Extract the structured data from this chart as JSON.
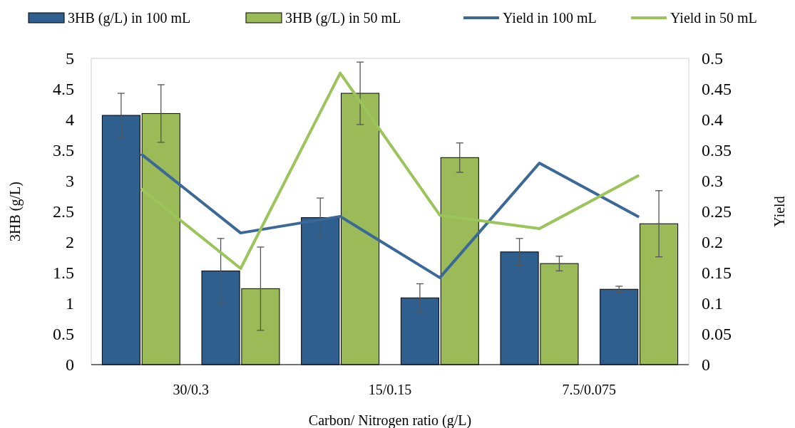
{
  "chart_data": {
    "type": "bar",
    "xlabel": "Carbon/ Nitrogen ratio (g/L)",
    "ylabel": "3HB (g/L)",
    "y2label": "Yield",
    "categories": [
      null,
      null,
      null,
      null,
      null,
      null
    ],
    "annotations": [
      "30/0.3",
      "15/0.15",
      "7.5/0.075"
    ],
    "series": [
      {
        "name": "3HB (g/L) in 100 mL",
        "color": "#2f5f8f",
        "values": [
          4.07,
          1.53,
          2.4,
          1.09,
          1.84,
          1.23
        ],
        "errors": [
          0.36,
          0.53,
          0.32,
          0.23,
          0.22,
          0.05
        ]
      },
      {
        "name": "3HB (g/L) in 50 mL",
        "color": "#9bbb59",
        "values": [
          4.1,
          1.24,
          4.43,
          3.38,
          1.65,
          2.3
        ],
        "errors": [
          0.47,
          0.68,
          0.51,
          0.24,
          0.12,
          0.54
        ]
      },
      {
        "name": "Yield in 100 mL",
        "type": "line",
        "axis": "y2",
        "color": "#3a6898",
        "values": [
          0.344,
          0.215,
          0.242,
          0.142,
          0.329,
          0.241
        ]
      },
      {
        "name": "Yield in 50 mL",
        "type": "line",
        "axis": "y2",
        "color": "#9bc45a",
        "values": [
          0.287,
          0.157,
          0.476,
          0.244,
          0.222,
          0.309
        ]
      }
    ],
    "ylim": [
      0,
      5
    ],
    "yticks": [
      0,
      0.5,
      1,
      1.5,
      2,
      2.5,
      3,
      3.5,
      4,
      4.5,
      5
    ],
    "y2lim": [
      0,
      0.5
    ],
    "y2ticks": [
      0,
      0.05,
      0.1,
      0.15,
      0.2,
      0.25,
      0.3,
      0.35,
      0.4,
      0.45,
      0.5
    ],
    "grid": false,
    "legend": "top",
    "marker": "none",
    "line_style": "solid"
  }
}
